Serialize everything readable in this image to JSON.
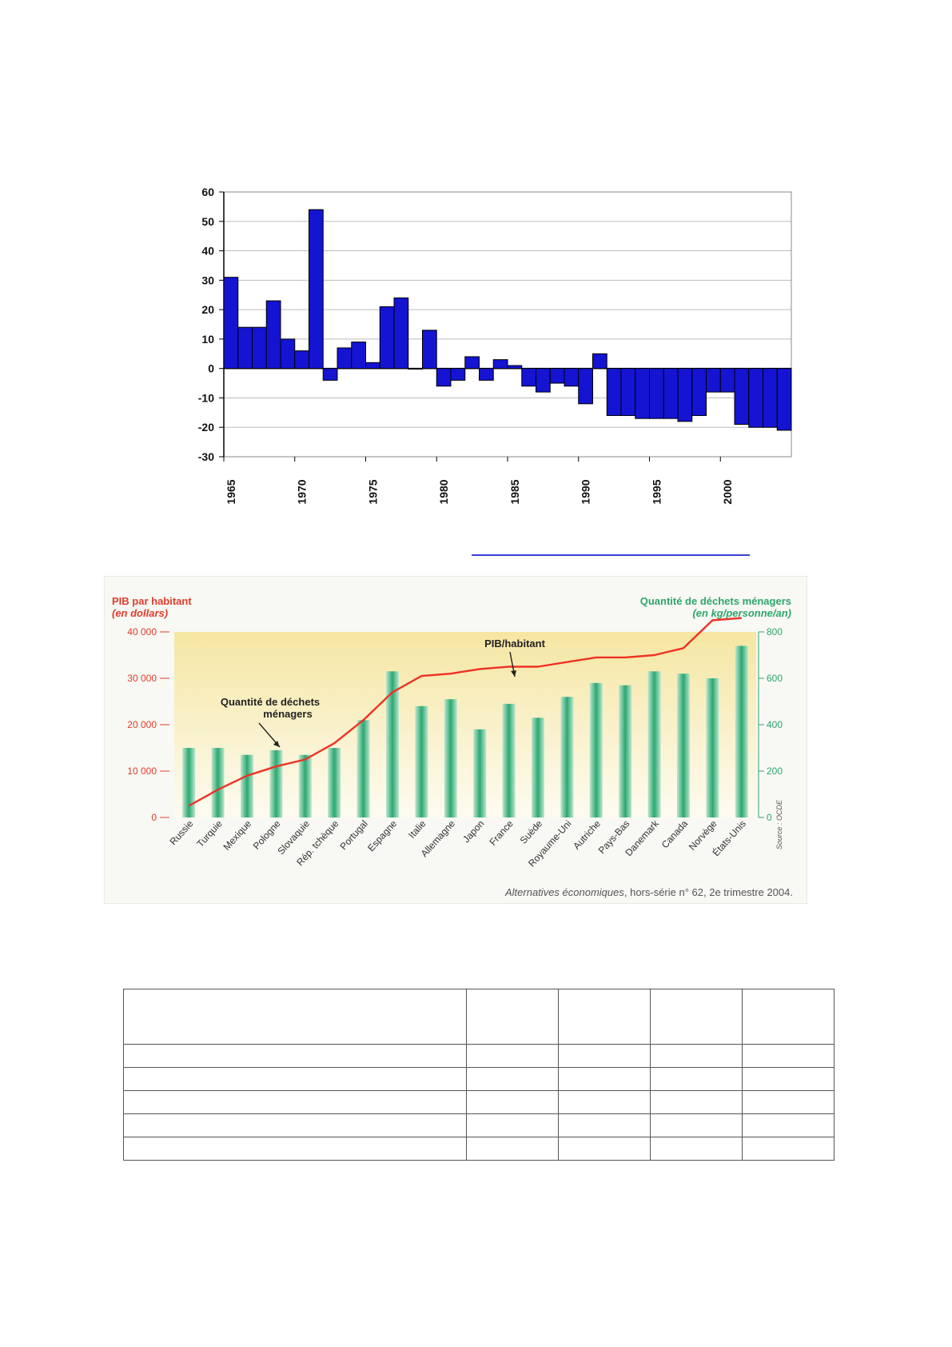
{
  "chart_data": [
    {
      "type": "bar",
      "title": "",
      "xlabel": "",
      "ylabel": "",
      "ylim": [
        -30,
        60
      ],
      "yticks": [
        60,
        50,
        40,
        30,
        20,
        10,
        0,
        -10,
        -20,
        -30
      ],
      "xtick_labels": [
        "1965",
        "1970",
        "1975",
        "1980",
        "1985",
        "1990",
        "1995",
        "2000"
      ],
      "x": [
        1965,
        1966,
        1967,
        1968,
        1969,
        1970,
        1971,
        1972,
        1973,
        1974,
        1975,
        1976,
        1977,
        1978,
        1979,
        1980,
        1981,
        1982,
        1983,
        1984,
        1985,
        1986,
        1987,
        1988,
        1989,
        1990,
        1991,
        1992,
        1993,
        1994,
        1995,
        1996,
        1997,
        1998,
        1999,
        2000,
        2001,
        2002,
        2003,
        2004
      ],
      "values": [
        31,
        14,
        14,
        23,
        10,
        6,
        54,
        -4,
        7,
        9,
        2,
        21,
        24,
        0,
        13,
        -6,
        -4,
        4,
        -4,
        3,
        1,
        -6,
        -8,
        -5,
        -6,
        -12,
        5,
        -16,
        -16,
        -17,
        -17,
        -17,
        -18,
        -16,
        -8,
        -8,
        -19,
        -20,
        -20,
        -21
      ],
      "bar_color": "#1414d2",
      "grid": true
    },
    {
      "type": "bar+line",
      "categories": [
        "Russie",
        "Turquie",
        "Mexique",
        "Pologne",
        "Slovaquie",
        "Rép. tchèque",
        "Portugal",
        "Espagne",
        "Italie",
        "Allemagne",
        "Japon",
        "France",
        "Suède",
        "Royaume-Uni",
        "Autriche",
        "Pays-Bas",
        "Danemark",
        "Canada",
        "Norvège",
        "États-Unis"
      ],
      "left_axis": {
        "label": "PIB par habitant",
        "unit": "(en dollars)",
        "ylim": [
          0,
          40000
        ],
        "ticks": [
          "0",
          "10 000",
          "20 000",
          "30 000",
          "40 000"
        ]
      },
      "right_axis": {
        "label": "Quantité de déchets ménagers",
        "unit": "(en kg/personne/an)",
        "ylim": [
          0,
          800
        ],
        "ticks": [
          "0",
          "200",
          "400",
          "600",
          "800"
        ]
      },
      "series": [
        {
          "name": "Quantité de déchets ménagers",
          "axis": "right",
          "kind": "bar",
          "values": [
            300,
            300,
            270,
            290,
            270,
            300,
            420,
            630,
            480,
            510,
            380,
            490,
            430,
            520,
            580,
            570,
            630,
            620,
            600,
            740
          ]
        },
        {
          "name": "PIB/habitant",
          "axis": "left",
          "kind": "line",
          "values": [
            2500,
            6000,
            9000,
            11000,
            12500,
            16000,
            21000,
            27000,
            30500,
            31000,
            32000,
            32500,
            32500,
            33500,
            34500,
            34500,
            35000,
            36500,
            42500,
            43000
          ]
        }
      ],
      "annotations": [
        {
          "text_lines": [
            "Quantité de déchets",
            "ménagers"
          ],
          "target_category": "Pologne",
          "target_series": "Quantité de déchets ménagers"
        },
        {
          "text_lines": [
            "PIB/habitant"
          ],
          "target_category": "Suède",
          "target_series": "PIB/habitant"
        }
      ],
      "source_note": "Source : OCDE",
      "citation": {
        "title": "Alternatives économiques",
        "rest": ", hors-série n° 62, 2e trimestre 2004."
      },
      "colors": {
        "line": "#ee3224",
        "bar": "#2aa871",
        "left_axis": "#e23b2a",
        "right_axis": "#2ea56b",
        "plot_bg_top": "#f5e6a2",
        "plot_bg_bottom": "#fdfbf1"
      }
    }
  ]
}
